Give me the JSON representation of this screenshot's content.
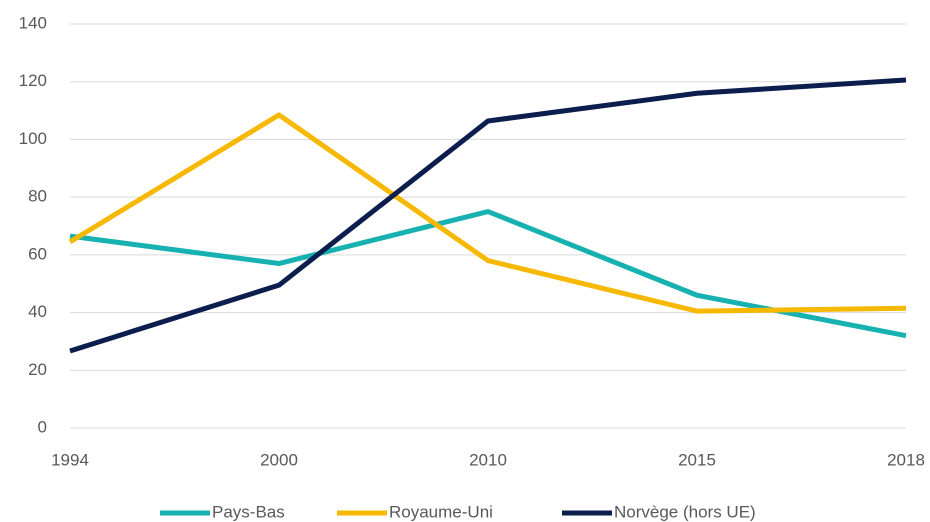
{
  "chart_data": {
    "type": "line",
    "categories": [
      "1994",
      "2000",
      "2010",
      "2015",
      "2018"
    ],
    "series": [
      {
        "name": "Pays-Bas",
        "color": "#17b1b1",
        "values": [
          66.5,
          57,
          75,
          46,
          32
        ]
      },
      {
        "name": "Royaume-Uni",
        "color": "#f6b800",
        "values": [
          64.5,
          108.5,
          58,
          40.5,
          41.5
        ]
      },
      {
        "name": "Norvège (hors UE)",
        "color": "#0c1e4e",
        "values": [
          26.7,
          49.5,
          106.4,
          116,
          120.6
        ]
      }
    ],
    "ylim": [
      0,
      140
    ],
    "yticks": [
      0,
      20,
      40,
      60,
      80,
      100,
      120,
      140
    ],
    "grid": true,
    "legend": "bottom"
  }
}
